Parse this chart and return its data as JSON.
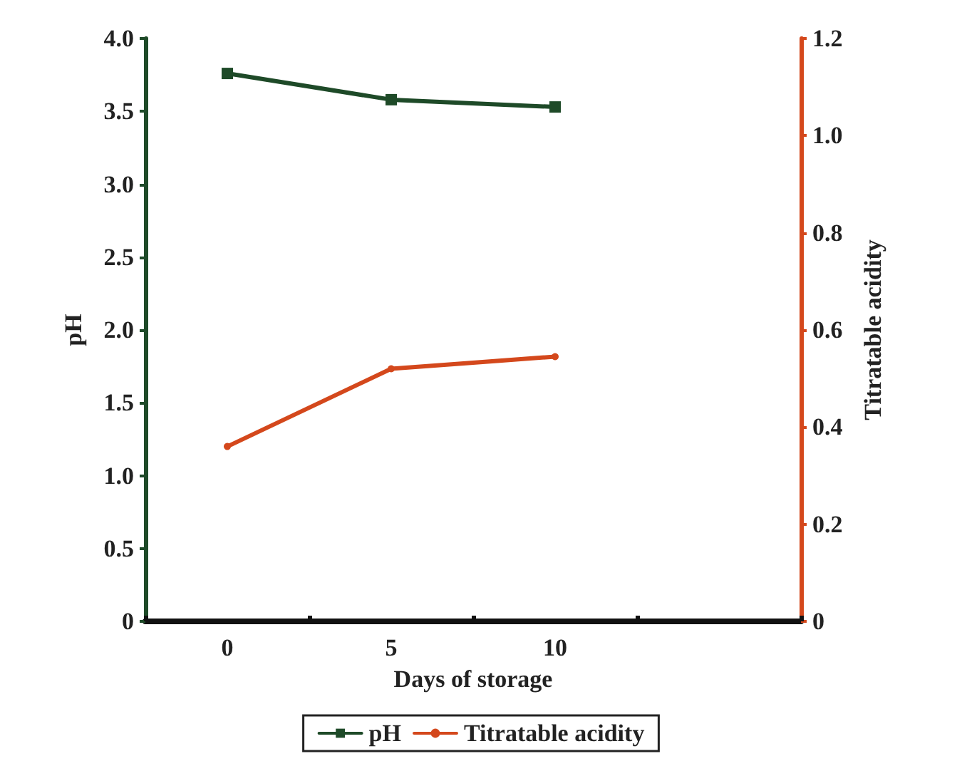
{
  "chart_data": {
    "type": "line",
    "xlabel": "Days of storage",
    "ylabel": "pH",
    "y2label": "Titratable acidity",
    "categories": [
      "0",
      "5",
      "10",
      null
    ],
    "series": [
      {
        "name": "pH",
        "color": "#1e4a28",
        "values": [
          3.76,
          3.58,
          3.53,
          null
        ],
        "marker": "square"
      },
      {
        "name": "Titratable acidity",
        "color": "#d4481c",
        "values": [
          0.36,
          0.52,
          0.545,
          null
        ],
        "axis": "y2",
        "marker": "circle"
      }
    ],
    "ylim": [
      0,
      4
    ],
    "yticks": [
      0,
      0.5,
      {
        "value": 1,
        "label": "1.0"
      },
      1.5,
      {
        "value": 2,
        "label": "2.0"
      },
      2.5,
      {
        "value": 3,
        "label": "3.0"
      },
      3.5,
      {
        "value": 4,
        "label": "4.0"
      }
    ],
    "y2lim": [
      0,
      1.2
    ],
    "y2ticks": [
      0,
      0.2,
      0.4,
      0.6,
      0.8,
      {
        "value": 1,
        "label": "1.0"
      },
      1.2
    ],
    "grid": false,
    "legend": "bottom"
  }
}
